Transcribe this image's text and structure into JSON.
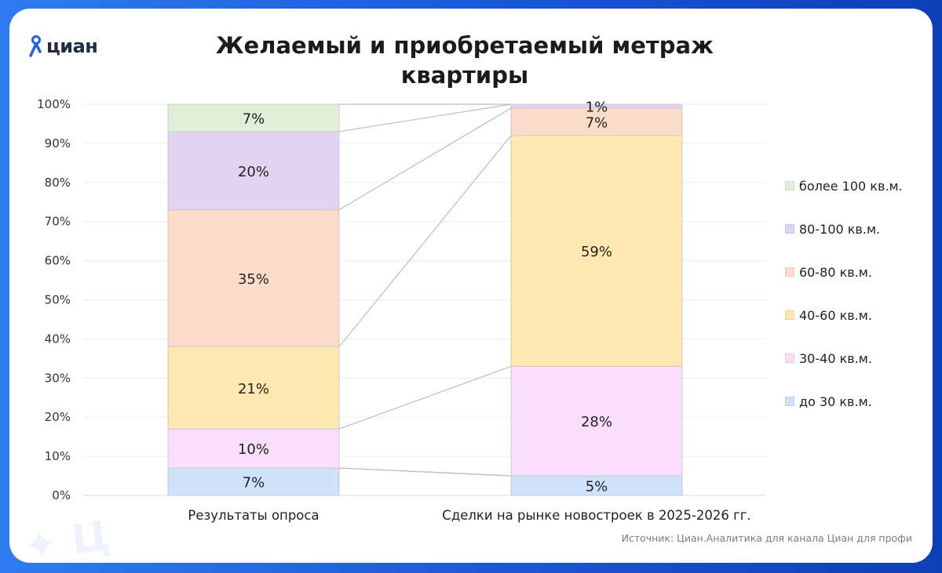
{
  "logo": {
    "text": "циан",
    "icon": "location-pin-icon",
    "color": "#1f5ff5"
  },
  "title": "Желаемый и приобретаемый метраж квартиры",
  "source": "Источник: Циан.Аналитика для канала Циан для профи",
  "chart_data": {
    "type": "bar",
    "stacked": true,
    "percent": true,
    "title": "Желаемый и приобретаемый метраж квартиры",
    "xlabel": "",
    "ylabel": "",
    "ylim": [
      0,
      100
    ],
    "y_ticks": [
      "0%",
      "10%",
      "20%",
      "30%",
      "40%",
      "50%",
      "60%",
      "70%",
      "80%",
      "90%",
      "100%"
    ],
    "grid": true,
    "legend_position": "right",
    "categories": [
      "Результаты опроса",
      "Сделки на рынке новостроек в 2025-2026 гг."
    ],
    "series": [
      {
        "name": "до 30 кв.м.",
        "color": "#cfe2fb",
        "values": [
          7,
          5
        ],
        "labels": [
          "7%",
          "5%"
        ]
      },
      {
        "name": "30-40 кв.м.",
        "color": "#fbdefb",
        "values": [
          10,
          28
        ],
        "labels": [
          "10%",
          "28%"
        ]
      },
      {
        "name": "40-60 кв.м.",
        "color": "#fde9b0",
        "values": [
          21,
          59
        ],
        "labels": [
          "21%",
          "59%"
        ]
      },
      {
        "name": "60-80 кв.м.",
        "color": "#fbdccb",
        "values": [
          35,
          7
        ],
        "labels": [
          "35%",
          "7%"
        ]
      },
      {
        "name": "80-100 кв.м.",
        "color": "#e2d3f3",
        "values": [
          20,
          1
        ],
        "labels": [
          "20%",
          "1%"
        ]
      },
      {
        "name": "более 100 кв.м.",
        "color": "#e0efd8",
        "values": [
          7,
          0
        ],
        "labels": [
          "7%",
          ""
        ]
      }
    ]
  },
  "legend": [
    {
      "label": "более 100 кв.м.",
      "color": "#e0efd8"
    },
    {
      "label": "80-100 кв.м.",
      "color": "#e2d3f3"
    },
    {
      "label": "60-80 кв.м.",
      "color": "#fbdccb"
    },
    {
      "label": "40-60 кв.м.",
      "color": "#fde9b0"
    },
    {
      "label": "30-40 кв.м.",
      "color": "#fbdefb"
    },
    {
      "label": "до 30 кв.м.",
      "color": "#cfe2fb"
    }
  ]
}
